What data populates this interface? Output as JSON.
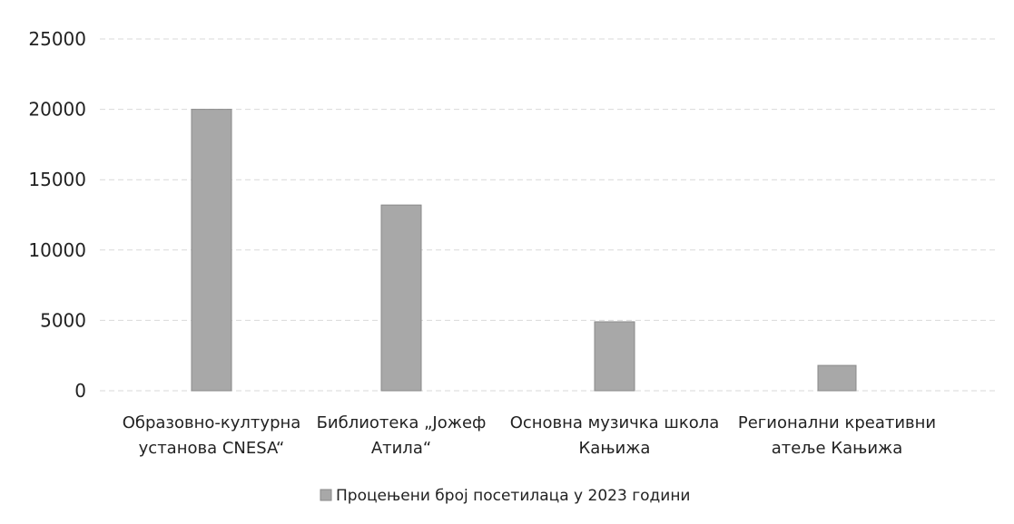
{
  "chart_data": {
    "type": "bar",
    "categories": [
      [
        "Образовно-културна",
        "установа CNESA“"
      ],
      [
        "Библиотека „Јожеф",
        "Атила“"
      ],
      [
        "Основна музичка школа",
        "Кањижа"
      ],
      [
        "Регионални креативни",
        "атеље Кањижа"
      ]
    ],
    "series": [
      {
        "name": "Процењени број посетилаца у 2023 години",
        "values": [
          20000,
          13200,
          4900,
          1800
        ]
      }
    ],
    "yticks": [
      "0",
      "5000",
      "10000",
      "15000",
      "20000",
      "25000"
    ],
    "ylim": [
      0,
      25000
    ],
    "grid": true,
    "legend_position": "bottom",
    "colors": {
      "bar": "#a8a8a8",
      "bar_edge": "#8a8a8a"
    }
  }
}
